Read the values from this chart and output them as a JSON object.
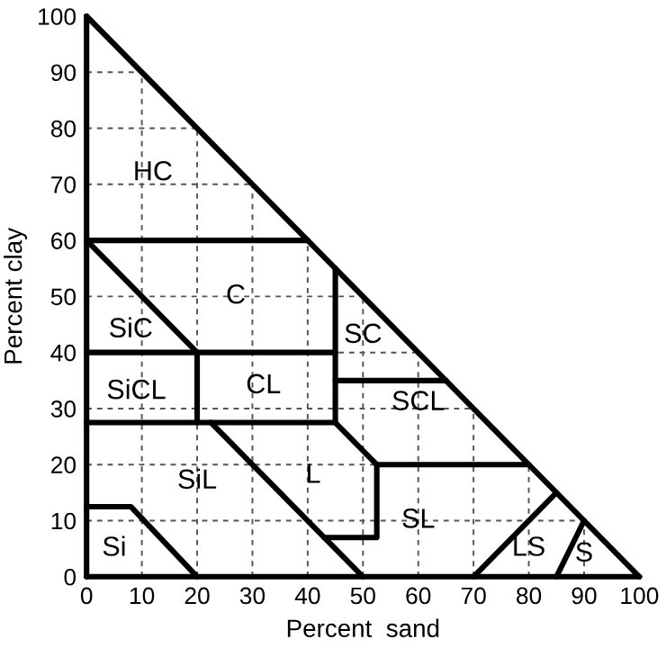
{
  "chart_data": {
    "type": "line",
    "xlabel": "Percent  sand",
    "ylabel": "Percent clay",
    "xlim": [
      0,
      100
    ],
    "ylim": [
      0,
      100
    ],
    "xticks": [
      0,
      10,
      20,
      30,
      40,
      50,
      60,
      70,
      80,
      90,
      100
    ],
    "yticks": [
      0,
      10,
      20,
      30,
      40,
      50,
      60,
      70,
      80,
      90,
      100
    ],
    "grid": true,
    "marker": "none",
    "line_style": "solid",
    "series": [
      {
        "color": "#000000",
        "x": [
          0,
          0
        ],
        "values": [
          100,
          0
        ]
      },
      {
        "color": "#000000",
        "x": [
          0,
          100
        ],
        "values": [
          0,
          0
        ]
      },
      {
        "color": "#000000",
        "x": [
          100,
          0
        ],
        "values": [
          0,
          100
        ]
      },
      {
        "color": "#000000",
        "x": [
          0,
          40
        ],
        "values": [
          60,
          60
        ]
      },
      {
        "color": "#000000",
        "x": [
          0,
          20
        ],
        "values": [
          60,
          40
        ]
      },
      {
        "color": "#000000",
        "x": [
          0,
          45
        ],
        "values": [
          40,
          40
        ]
      },
      {
        "color": "#000000",
        "x": [
          20,
          20
        ],
        "values": [
          40,
          27.5
        ]
      },
      {
        "color": "#000000",
        "x": [
          0,
          45
        ],
        "values": [
          27.5,
          27.5
        ]
      },
      {
        "color": "#000000",
        "x": [
          45,
          45
        ],
        "values": [
          55,
          27.5
        ]
      },
      {
        "color": "#000000",
        "x": [
          45,
          65
        ],
        "values": [
          35,
          35
        ]
      },
      {
        "color": "#000000",
        "x": [
          45,
          52.5,
          80
        ],
        "values": [
          27.5,
          20,
          20
        ]
      },
      {
        "color": "#000000",
        "x": [
          52.5,
          52.5,
          43
        ],
        "values": [
          20,
          7,
          7
        ]
      },
      {
        "color": "#000000",
        "x": [
          22.5,
          50
        ],
        "values": [
          27.5,
          0
        ]
      },
      {
        "color": "#000000",
        "x": [
          0,
          8,
          20
        ],
        "values": [
          12.5,
          12.5,
          0
        ]
      },
      {
        "color": "#000000",
        "x": [
          70,
          85
        ],
        "values": [
          0,
          15
        ]
      },
      {
        "color": "#000000",
        "x": [
          85,
          90
        ],
        "values": [
          0,
          10
        ]
      }
    ],
    "annotations": [
      "HC",
      "C",
      "SiC",
      "SiCL",
      "CL",
      "SC",
      "SCL",
      "SiL",
      "L",
      "SL",
      "LS",
      "S",
      "Si"
    ]
  }
}
